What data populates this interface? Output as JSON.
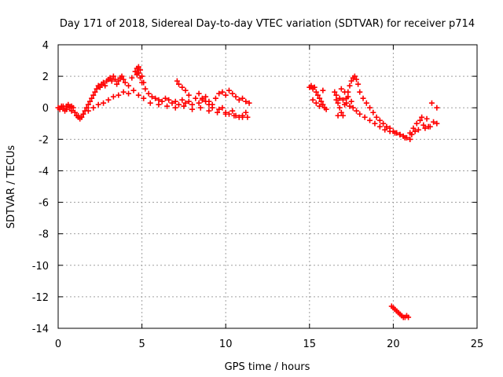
{
  "chart_data": {
    "type": "scatter",
    "title": "Day 171 of 2018, Sidereal Day-to-day VTEC variation (SDTVAR) for receiver p714",
    "xlabel": "GPS time / hours",
    "ylabel": "SDTVAR / TECUs",
    "xlim": [
      0,
      25
    ],
    "ylim": [
      -14,
      4
    ],
    "xticks": [
      0,
      5,
      10,
      15,
      20,
      25
    ],
    "yticks": [
      -14,
      -12,
      -10,
      -8,
      -6,
      -4,
      -2,
      0,
      2,
      4
    ],
    "grid": true,
    "marker": "+",
    "series": [
      {
        "name": "p714 SDTVAR",
        "color": "#ff0000",
        "x": [
          0.0,
          0.1,
          0.2,
          0.3,
          0.4,
          0.5,
          0.6,
          0.7,
          0.8,
          0.9,
          1.0,
          1.1,
          1.2,
          1.3,
          1.4,
          1.5,
          1.6,
          1.7,
          1.8,
          1.9,
          2.0,
          2.1,
          2.2,
          2.3,
          2.4,
          2.5,
          2.6,
          2.7,
          2.8,
          2.9,
          3.0,
          3.1,
          3.2,
          3.3,
          3.4,
          3.5,
          3.6,
          3.7,
          3.8,
          3.9,
          4.0,
          4.2,
          4.4,
          4.6,
          4.7,
          4.8,
          4.9,
          5.0,
          5.1,
          5.2,
          5.4,
          5.6,
          5.8,
          6.0,
          6.2,
          6.4,
          6.6,
          6.8,
          7.0,
          7.2,
          7.4,
          7.6,
          7.8,
          8.0,
          8.2,
          8.4,
          8.6,
          8.8,
          9.0,
          9.2,
          9.4,
          9.6,
          9.8,
          10.0,
          10.2,
          10.4,
          10.6,
          10.8,
          11.0,
          11.2,
          11.4,
          0.3,
          0.5,
          0.8,
          1.0,
          1.2,
          1.5,
          1.8,
          2.1,
          2.4,
          2.7,
          3.0,
          3.3,
          3.6,
          3.9,
          4.2,
          4.5,
          4.8,
          5.1,
          5.5,
          6.0,
          6.5,
          7.0,
          7.5,
          8.0,
          8.5,
          9.0,
          9.5,
          10.0,
          10.5,
          11.0,
          11.3,
          4.8,
          4.9,
          5.0,
          4.7,
          7.1,
          7.2,
          7.4,
          7.6,
          7.8,
          8.4,
          8.6,
          8.8,
          9.0,
          9.2,
          9.6,
          9.8,
          10.0,
          10.2,
          10.4,
          10.6,
          10.8,
          11.0,
          11.2,
          15.0,
          15.1,
          15.2,
          15.3,
          15.4,
          15.5,
          15.6,
          15.7,
          15.8,
          15.9,
          16.0,
          15.2,
          15.4,
          15.6,
          15.8,
          16.5,
          16.6,
          16.7,
          16.8,
          16.9,
          17.0,
          17.1,
          17.2,
          17.3,
          17.4,
          17.5,
          17.6,
          17.7,
          17.8,
          17.9,
          18.0,
          18.2,
          18.4,
          18.6,
          18.8,
          19.0,
          19.2,
          19.4,
          19.6,
          19.8,
          20.0,
          20.2,
          20.4,
          20.6,
          20.8,
          21.0,
          16.6,
          16.8,
          17.0,
          17.2,
          17.4,
          17.6,
          17.8,
          18.0,
          18.3,
          18.6,
          18.9,
          19.2,
          19.5,
          19.8,
          20.1,
          20.4,
          20.7,
          21.0,
          16.7,
          16.9,
          17.1,
          17.3,
          17.5,
          21.0,
          21.2,
          21.4,
          21.6,
          21.8,
          22.0,
          22.2,
          22.4,
          21.1,
          21.3,
          21.5,
          21.7,
          21.9,
          22.1,
          22.3,
          22.6,
          22.6,
          19.9,
          20.0,
          20.1,
          20.2,
          20.3,
          20.4,
          20.5,
          20.6,
          20.7,
          20.8,
          20.9
        ],
        "y": [
          0.0,
          -0.1,
          0.1,
          0.0,
          -0.2,
          0.1,
          0.2,
          0.0,
          0.1,
          0.0,
          -0.3,
          -0.5,
          -0.6,
          -0.7,
          -0.6,
          -0.4,
          -0.2,
          0.0,
          0.2,
          0.4,
          0.6,
          0.8,
          1.0,
          1.2,
          1.4,
          1.3,
          1.5,
          1.6,
          1.4,
          1.7,
          1.8,
          1.9,
          1.7,
          2.0,
          1.8,
          1.5,
          1.7,
          1.9,
          2.0,
          1.8,
          1.6,
          1.4,
          1.9,
          2.3,
          2.5,
          2.6,
          2.4,
          2.0,
          1.6,
          1.2,
          0.9,
          0.7,
          0.6,
          0.5,
          0.4,
          0.6,
          0.5,
          0.3,
          0.4,
          0.2,
          0.5,
          0.3,
          0.4,
          0.2,
          0.6,
          0.3,
          0.5,
          0.7,
          0.4,
          0.2,
          0.6,
          0.9,
          1.0,
          0.8,
          1.1,
          0.9,
          0.7,
          0.5,
          0.6,
          0.4,
          0.3,
          0.1,
          -0.1,
          -0.2,
          -0.3,
          -0.5,
          -0.4,
          -0.2,
          0.0,
          0.2,
          0.3,
          0.5,
          0.7,
          0.8,
          1.0,
          0.9,
          1.1,
          0.8,
          0.6,
          0.3,
          0.2,
          0.1,
          0.0,
          0.1,
          -0.1,
          0.0,
          -0.2,
          -0.3,
          -0.4,
          -0.5,
          -0.6,
          -0.6,
          2.2,
          1.9,
          1.6,
          2.1,
          1.7,
          1.5,
          1.3,
          1.1,
          0.8,
          0.9,
          0.6,
          0.4,
          0.2,
          0.0,
          -0.1,
          0.0,
          -0.3,
          -0.4,
          -0.2,
          -0.5,
          -0.6,
          -0.5,
          -0.3,
          1.3,
          1.4,
          1.2,
          1.3,
          1.0,
          0.8,
          0.6,
          0.4,
          0.2,
          0.0,
          -0.1,
          0.5,
          0.3,
          0.1,
          1.1,
          1.0,
          0.5,
          0.3,
          0.0,
          -0.3,
          -0.5,
          0.2,
          0.6,
          1.0,
          1.4,
          1.7,
          1.9,
          2.0,
          1.8,
          1.5,
          1.0,
          0.6,
          0.3,
          0.0,
          -0.3,
          -0.6,
          -0.8,
          -1.0,
          -1.2,
          -1.3,
          -1.5,
          -1.6,
          -1.7,
          -1.8,
          -1.9,
          -2.0,
          0.8,
          0.6,
          0.5,
          0.3,
          0.1,
          0.0,
          -0.2,
          -0.4,
          -0.6,
          -0.8,
          -1.0,
          -1.2,
          -1.4,
          -1.5,
          -1.6,
          -1.7,
          -1.9,
          -2.0,
          -0.5,
          1.2,
          1.0,
          0.7,
          0.4,
          -1.6,
          -1.3,
          -1.0,
          -0.8,
          -1.1,
          -0.7,
          -1.2,
          -0.9,
          -1.7,
          -1.5,
          -1.4,
          -0.6,
          -1.3,
          -1.2,
          0.3,
          -1.0,
          0.0,
          -12.6,
          -12.7,
          -12.8,
          -12.9,
          -13.0,
          -13.1,
          -13.2,
          -13.3,
          -13.3,
          -13.2,
          -13.3
        ]
      }
    ]
  }
}
